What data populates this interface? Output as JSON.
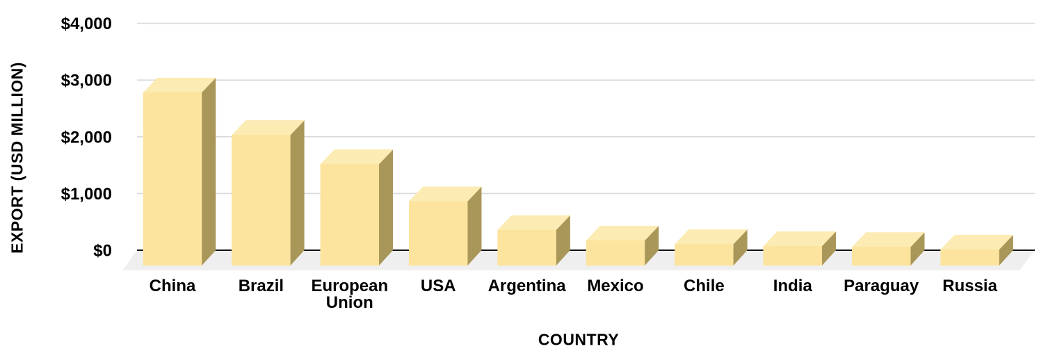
{
  "chart_data": {
    "type": "bar",
    "variant": "3d-column",
    "title": "",
    "xlabel": "COUNTRY",
    "ylabel": "EXPORT (USD MILLION)",
    "categories": [
      "China",
      "Brazil",
      "European Union",
      "USA",
      "Argentina",
      "Mexico",
      "Chile",
      "India",
      "Paraguay",
      "Russia"
    ],
    "values": [
      3050,
      2300,
      1785,
      1130,
      625,
      440,
      375,
      340,
      325,
      280
    ],
    "ylim": [
      0,
      4000
    ],
    "yticks": [
      {
        "value": 0,
        "label": "$0"
      },
      {
        "value": 1000,
        "label": "$1,000"
      },
      {
        "value": 2000,
        "label": "$2,000"
      },
      {
        "value": 3000,
        "label": "$3,000"
      },
      {
        "value": 4000,
        "label": "$4,000"
      }
    ],
    "grid": true,
    "legend": "none",
    "colors": {
      "bar_front": "#FCE49E",
      "bar_top": "#FCEBB3",
      "bar_side": "#A99759",
      "floor": "#EFEFEF",
      "gridline": "#D9D9D9",
      "axis_line": "#111111",
      "text": "#000000",
      "background": "#FFFFFF"
    }
  }
}
